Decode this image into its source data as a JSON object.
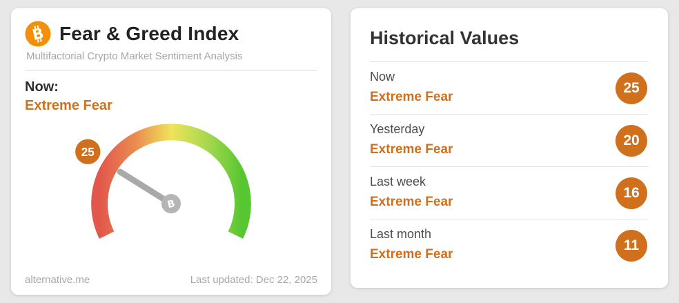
{
  "left_card": {
    "title": "Fear & Greed Index",
    "subtitle": "Multifactorial Crypto Market Sentiment Analysis",
    "now_label": "Now:",
    "now_classification": "Extreme Fear",
    "footer_source": "alternative.me",
    "footer_updated": "Last updated: Dec 22, 2025"
  },
  "right_card": {
    "title": "Historical Values",
    "rows": [
      {
        "label": "Now",
        "classification": "Extreme Fear",
        "value": 25
      },
      {
        "label": "Yesterday",
        "classification": "Extreme Fear",
        "value": 20
      },
      {
        "label": "Last week",
        "classification": "Extreme Fear",
        "value": 16
      },
      {
        "label": "Last month",
        "classification": "Extreme Fear",
        "value": 11
      }
    ]
  },
  "chart_data": {
    "type": "gauge",
    "title": "Fear & Greed Index",
    "value": 25,
    "min": 0,
    "max": 100,
    "classification": "Extreme Fear",
    "last_updated": "Dec 22, 2025",
    "start_angle_deg": 206,
    "end_angle_deg": -26,
    "scale_gradient": [
      "#e2574c",
      "#ea8b50",
      "#efe35a",
      "#a8d84f",
      "#56c631"
    ],
    "historical": [
      {
        "label": "Now",
        "value": 25,
        "classification": "Extreme Fear"
      },
      {
        "label": "Yesterday",
        "value": 20,
        "classification": "Extreme Fear"
      },
      {
        "label": "Last week",
        "value": 16,
        "classification": "Extreme Fear"
      },
      {
        "label": "Last month",
        "value": 11,
        "classification": "Extreme Fear"
      }
    ]
  },
  "colors": {
    "accent_orange": "#d0701c",
    "bitcoin_orange": "#f2900c",
    "needle_gray": "#a9a9a9",
    "background": "#e8e8e8"
  }
}
